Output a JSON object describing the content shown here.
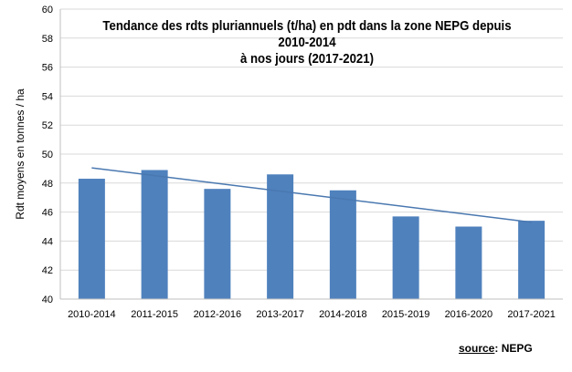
{
  "chart_data": {
    "type": "bar",
    "title": "Tendance des rdts pluriannuels (t/ha) en pdt dans la zone NEPG depuis 2010-2014",
    "subtitle": "à nos jours (2017-2021)",
    "xlabel": "",
    "ylabel": "Rdt moyens en tonnes / ha",
    "ylim": [
      40,
      60
    ],
    "yticks": [
      "40",
      "42",
      "44",
      "46",
      "48",
      "50",
      "52",
      "54",
      "56",
      "58",
      "60"
    ],
    "categories": [
      "2010-2014",
      "2011-2015",
      "2012-2016",
      "2013-2017",
      "2014-2018",
      "2015-2019",
      "2016-2020",
      "2017-2021"
    ],
    "values": [
      48.3,
      48.9,
      47.6,
      48.6,
      47.5,
      45.7,
      45.0,
      45.4
    ],
    "trendline": {
      "start": 49.05,
      "end": 45.3
    },
    "grid": true,
    "legend": "none",
    "bar_color": "#4f81bd",
    "trend_color": "#4a78b0"
  },
  "source": {
    "label": "source",
    "separator": ": ",
    "value": "NEPG"
  }
}
